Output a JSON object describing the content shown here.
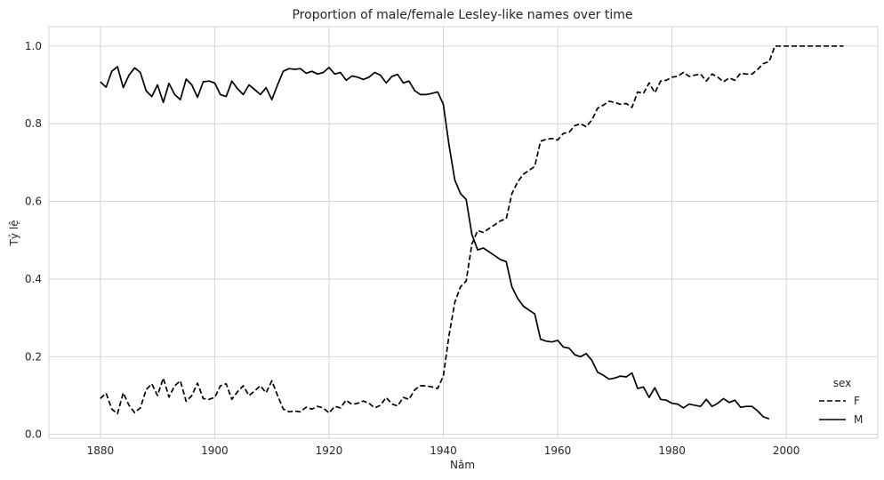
{
  "chart_data": {
    "type": "line",
    "title": "Proportion of male/female Lesley-like names over time",
    "xlabel": "Năm",
    "ylabel": "Tỷ lệ",
    "xlim": [
      1871,
      2016
    ],
    "ylim": [
      -0.01,
      1.05
    ],
    "xticks": [
      1880,
      1900,
      1920,
      1940,
      1960,
      1980,
      2000
    ],
    "yticks": [
      0.0,
      0.2,
      0.4,
      0.6,
      0.8,
      1.0
    ],
    "xtick_labels": [
      "1880",
      "1900",
      "1920",
      "1940",
      "1960",
      "1980",
      "2000"
    ],
    "ytick_labels": [
      "0.0",
      "0.2",
      "0.4",
      "0.6",
      "0.8",
      "1.0"
    ],
    "grid": true,
    "legend": {
      "title": "sex",
      "placement": "bottom-right"
    },
    "series": [
      {
        "name": "F",
        "style": "dashed",
        "color": "#000000",
        "x": [
          1880,
          1881,
          1882,
          1883,
          1884,
          1885,
          1886,
          1887,
          1888,
          1889,
          1890,
          1891,
          1892,
          1893,
          1894,
          1895,
          1896,
          1897,
          1898,
          1899,
          1900,
          1901,
          1902,
          1903,
          1904,
          1905,
          1906,
          1907,
          1908,
          1909,
          1910,
          1911,
          1912,
          1913,
          1914,
          1915,
          1916,
          1917,
          1918,
          1919,
          1920,
          1921,
          1922,
          1923,
          1924,
          1925,
          1926,
          1927,
          1928,
          1929,
          1930,
          1931,
          1932,
          1933,
          1934,
          1935,
          1936,
          1937,
          1938,
          1939,
          1940,
          1941,
          1942,
          1943,
          1944,
          1945,
          1946,
          1947,
          1948,
          1949,
          1950,
          1951,
          1952,
          1953,
          1954,
          1955,
          1956,
          1957,
          1958,
          1959,
          1960,
          1961,
          1962,
          1963,
          1964,
          1965,
          1966,
          1967,
          1968,
          1969,
          1970,
          1971,
          1972,
          1973,
          1974,
          1975,
          1976,
          1977,
          1978,
          1979,
          1980,
          1981,
          1982,
          1983,
          1984,
          1985,
          1986,
          1987,
          1988,
          1989,
          1990,
          1991,
          1992,
          1993,
          1994,
          1995,
          1996,
          1997,
          1998,
          1999,
          2000,
          2001,
          2002,
          2003,
          2004,
          2005,
          2006,
          2007,
          2008,
          2009,
          2010
        ],
        "values": [
          0.092,
          0.106,
          0.065,
          0.053,
          0.107,
          0.075,
          0.056,
          0.068,
          0.115,
          0.13,
          0.1,
          0.145,
          0.096,
          0.125,
          0.138,
          0.085,
          0.1,
          0.132,
          0.092,
          0.09,
          0.095,
          0.125,
          0.13,
          0.09,
          0.11,
          0.125,
          0.1,
          0.112,
          0.125,
          0.107,
          0.138,
          0.1,
          0.065,
          0.058,
          0.06,
          0.058,
          0.07,
          0.065,
          0.072,
          0.068,
          0.055,
          0.072,
          0.068,
          0.088,
          0.077,
          0.08,
          0.086,
          0.08,
          0.068,
          0.075,
          0.095,
          0.078,
          0.073,
          0.095,
          0.09,
          0.115,
          0.125,
          0.125,
          0.122,
          0.118,
          0.15,
          0.255,
          0.34,
          0.38,
          0.395,
          0.49,
          0.525,
          0.52,
          0.53,
          0.54,
          0.55,
          0.555,
          0.62,
          0.65,
          0.67,
          0.68,
          0.69,
          0.755,
          0.76,
          0.762,
          0.758,
          0.775,
          0.778,
          0.795,
          0.8,
          0.792,
          0.81,
          0.84,
          0.848,
          0.858,
          0.855,
          0.85,
          0.852,
          0.842,
          0.882,
          0.878,
          0.905,
          0.88,
          0.91,
          0.912,
          0.92,
          0.922,
          0.932,
          0.922,
          0.925,
          0.928,
          0.91,
          0.928,
          0.92,
          0.908,
          0.918,
          0.912,
          0.93,
          0.928,
          0.928,
          0.94,
          0.955,
          0.96,
          1.0,
          1.0,
          1.0,
          1.0,
          1.0,
          1.0,
          1.0,
          1.0,
          1.0,
          1.0,
          1.0,
          1.0,
          1.0
        ]
      },
      {
        "name": "M",
        "style": "solid",
        "color": "#000000",
        "x": [
          1880,
          1881,
          1882,
          1883,
          1884,
          1885,
          1886,
          1887,
          1888,
          1889,
          1890,
          1891,
          1892,
          1893,
          1894,
          1895,
          1896,
          1897,
          1898,
          1899,
          1900,
          1901,
          1902,
          1903,
          1904,
          1905,
          1906,
          1907,
          1908,
          1909,
          1910,
          1911,
          1912,
          1913,
          1914,
          1915,
          1916,
          1917,
          1918,
          1919,
          1920,
          1921,
          1922,
          1923,
          1924,
          1925,
          1926,
          1927,
          1928,
          1929,
          1930,
          1931,
          1932,
          1933,
          1934,
          1935,
          1936,
          1937,
          1938,
          1939,
          1940,
          1941,
          1942,
          1943,
          1944,
          1945,
          1946,
          1947,
          1948,
          1949,
          1950,
          1951,
          1952,
          1953,
          1954,
          1955,
          1956,
          1957,
          1958,
          1959,
          1960,
          1961,
          1962,
          1963,
          1964,
          1965,
          1966,
          1967,
          1968,
          1969,
          1970,
          1971,
          1972,
          1973,
          1974,
          1975,
          1976,
          1977,
          1978,
          1979,
          1980,
          1981,
          1982,
          1983,
          1984,
          1985,
          1986,
          1987,
          1988,
          1989,
          1990,
          1991,
          1992,
          1993,
          1994,
          1995,
          1996,
          1997
        ],
        "values": [
          0.908,
          0.894,
          0.935,
          0.947,
          0.893,
          0.925,
          0.944,
          0.932,
          0.885,
          0.87,
          0.9,
          0.855,
          0.904,
          0.875,
          0.862,
          0.915,
          0.9,
          0.868,
          0.908,
          0.91,
          0.905,
          0.875,
          0.87,
          0.91,
          0.89,
          0.875,
          0.9,
          0.888,
          0.875,
          0.893,
          0.862,
          0.9,
          0.935,
          0.942,
          0.94,
          0.942,
          0.93,
          0.935,
          0.928,
          0.932,
          0.945,
          0.928,
          0.932,
          0.912,
          0.923,
          0.92,
          0.914,
          0.92,
          0.932,
          0.925,
          0.905,
          0.922,
          0.927,
          0.905,
          0.91,
          0.885,
          0.875,
          0.875,
          0.878,
          0.882,
          0.85,
          0.745,
          0.655,
          0.62,
          0.605,
          0.515,
          0.475,
          0.48,
          0.47,
          0.46,
          0.45,
          0.445,
          0.38,
          0.35,
          0.33,
          0.32,
          0.31,
          0.245,
          0.24,
          0.238,
          0.242,
          0.225,
          0.222,
          0.205,
          0.2,
          0.208,
          0.19,
          0.16,
          0.152,
          0.142,
          0.145,
          0.15,
          0.148,
          0.158,
          0.118,
          0.122,
          0.095,
          0.12,
          0.09,
          0.088,
          0.08,
          0.078,
          0.068,
          0.078,
          0.075,
          0.072,
          0.09,
          0.072,
          0.08,
          0.092,
          0.082,
          0.088,
          0.07,
          0.072,
          0.072,
          0.06,
          0.045,
          0.04
        ]
      }
    ]
  }
}
